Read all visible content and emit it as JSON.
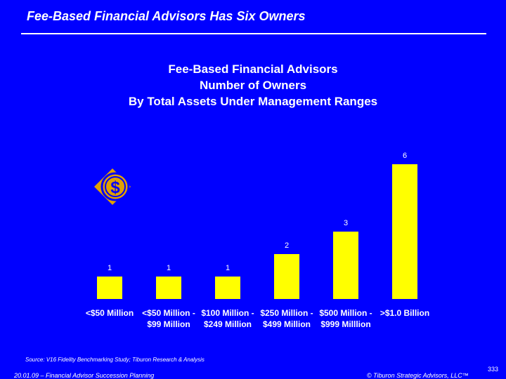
{
  "slide": {
    "title": "Fee-Based Financial Advisors Has Six Owners",
    "source": "Source: V16 Fidelity Benchmarking Study; Tiburon Research & Analysis",
    "footer_left": "20.01.09 – Financial Advisor Succession Planning",
    "footer_right": "© Tiburon Strategic Advisors, LLC™",
    "page_number": "333"
  },
  "logo": {
    "icon": "dollar-coin-icon",
    "glyph": "$",
    "color": "#e0a000"
  },
  "colors": {
    "background": "#0000ff",
    "bar": "#ffff00",
    "text": "#ffffff"
  },
  "chart_data": {
    "type": "bar",
    "title_lines": [
      "Fee-Based Financial Advisors",
      "Number of Owners",
      "By Total Assets Under Management Ranges"
    ],
    "categories": [
      [
        "<$50 Million"
      ],
      [
        "<$50 Million -",
        "$99 Million"
      ],
      [
        "$100 Million -",
        "$249 Million"
      ],
      [
        "$250 Million -",
        "$499 Million"
      ],
      [
        "$500 Million -",
        "$999 Milllion"
      ],
      [
        ">$1.0 Billion"
      ]
    ],
    "values": [
      1,
      1,
      1,
      2,
      3,
      6
    ],
    "data_labels": [
      "1",
      "1",
      "1",
      "2",
      "3",
      "6"
    ],
    "ylim": [
      0,
      6
    ],
    "grid": false,
    "legend": false
  }
}
